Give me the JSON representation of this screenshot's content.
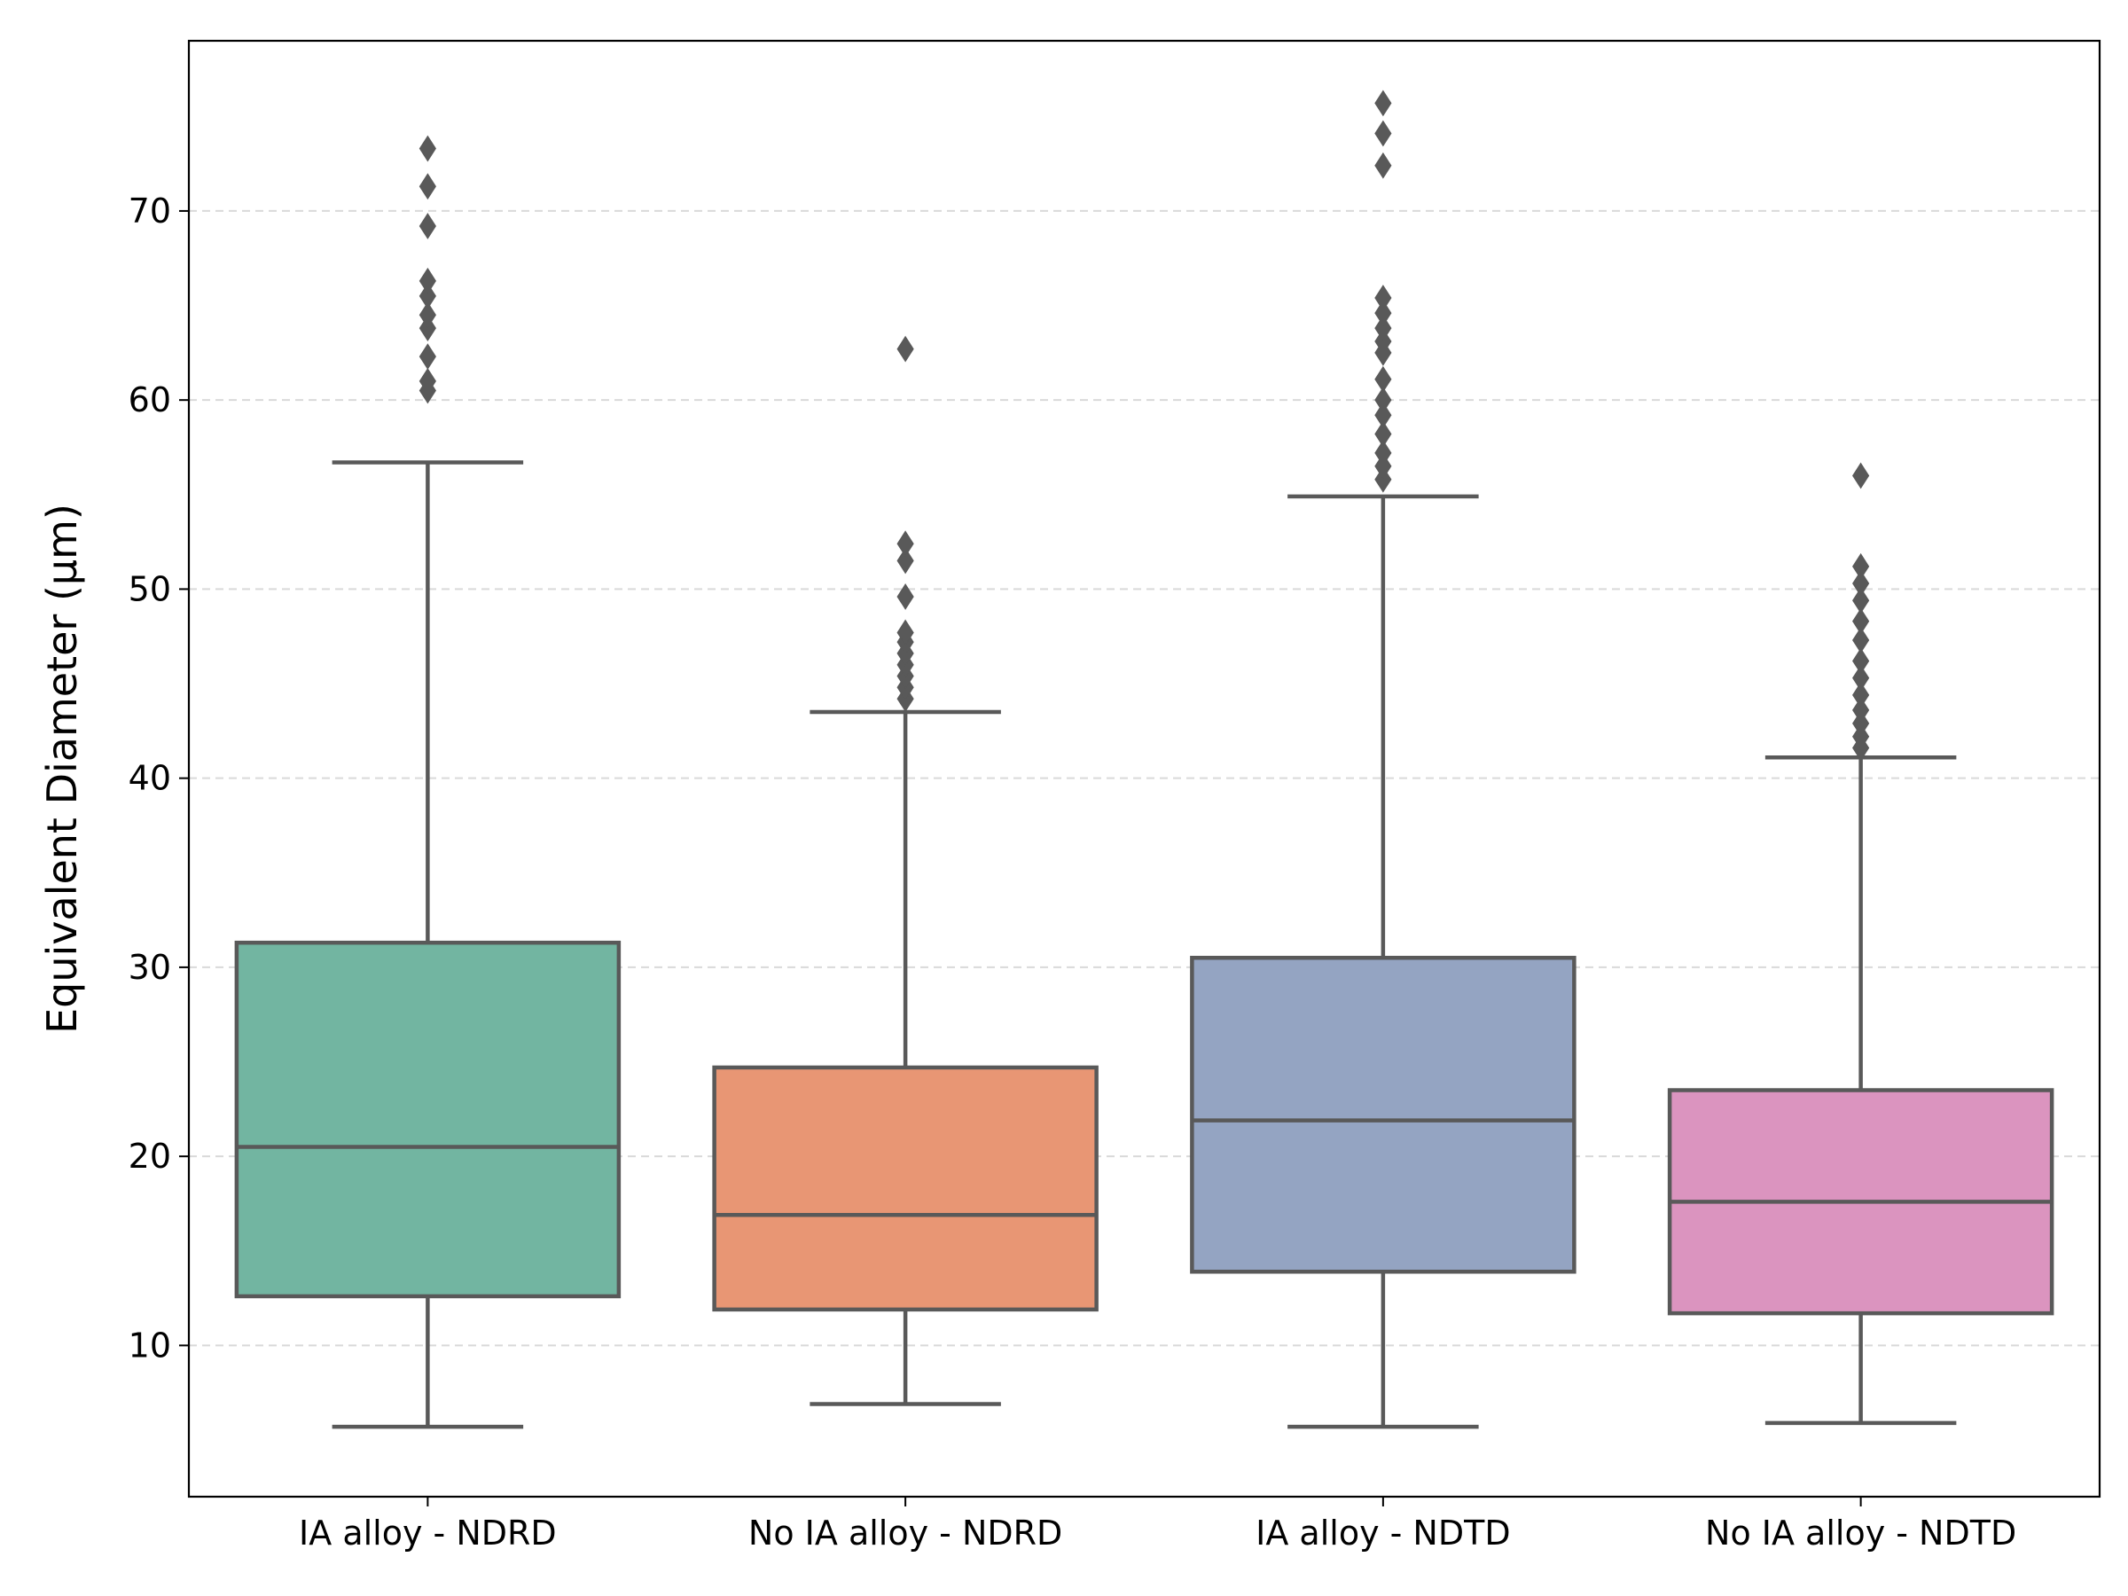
{
  "chart_data": {
    "type": "box",
    "title": "",
    "xlabel": "",
    "ylabel": "Equivalent Diameter (μm)",
    "ylim": [
      2,
      79
    ],
    "yticks": [
      10,
      20,
      30,
      40,
      50,
      60,
      70
    ],
    "grid": "y-dashed",
    "colors": {
      "box_edge": "#595959",
      "grid": "#d9d9d9"
    },
    "categories": [
      "IA alloy - NDRD",
      "No IA alloy - NDRD",
      "IA alloy - NDTD",
      "No IA alloy - NDTD"
    ],
    "boxes": [
      {
        "category": "IA alloy - NDRD",
        "color": "#72b5a1",
        "whisker_low": 5.7,
        "q1": 12.6,
        "median": 20.5,
        "q3": 31.3,
        "whisker_high": 56.7,
        "outliers": [
          60.5,
          61.0,
          62.3,
          63.8,
          64.5,
          65.5,
          66.3,
          69.2,
          71.3,
          73.3
        ]
      },
      {
        "category": "No IA alloy - NDRD",
        "color": "#e89674",
        "whisker_low": 6.9,
        "q1": 11.9,
        "median": 16.9,
        "q3": 24.7,
        "whisker_high": 43.5,
        "outliers": [
          44.2,
          44.8,
          45.4,
          46.0,
          46.6,
          47.2,
          47.7,
          49.6,
          51.5,
          52.4,
          62.7
        ]
      },
      {
        "category": "IA alloy - NDTD",
        "color": "#94a4c2",
        "whisker_low": 5.7,
        "q1": 13.9,
        "median": 21.9,
        "q3": 30.5,
        "whisker_high": 54.9,
        "outliers": [
          55.8,
          56.5,
          57.2,
          58.2,
          59.2,
          60.0,
          61.1,
          62.5,
          63.1,
          63.8,
          64.6,
          65.4,
          72.4,
          74.1,
          75.7
        ]
      },
      {
        "category": "No IA alloy - NDTD",
        "color": "#db94bf",
        "whisker_low": 5.9,
        "q1": 11.7,
        "median": 17.6,
        "q3": 23.5,
        "whisker_high": 41.1,
        "outliers": [
          41.6,
          42.2,
          42.9,
          43.6,
          44.4,
          45.3,
          46.2,
          47.3,
          48.3,
          49.4,
          50.3,
          51.2,
          56.0
        ]
      }
    ]
  }
}
